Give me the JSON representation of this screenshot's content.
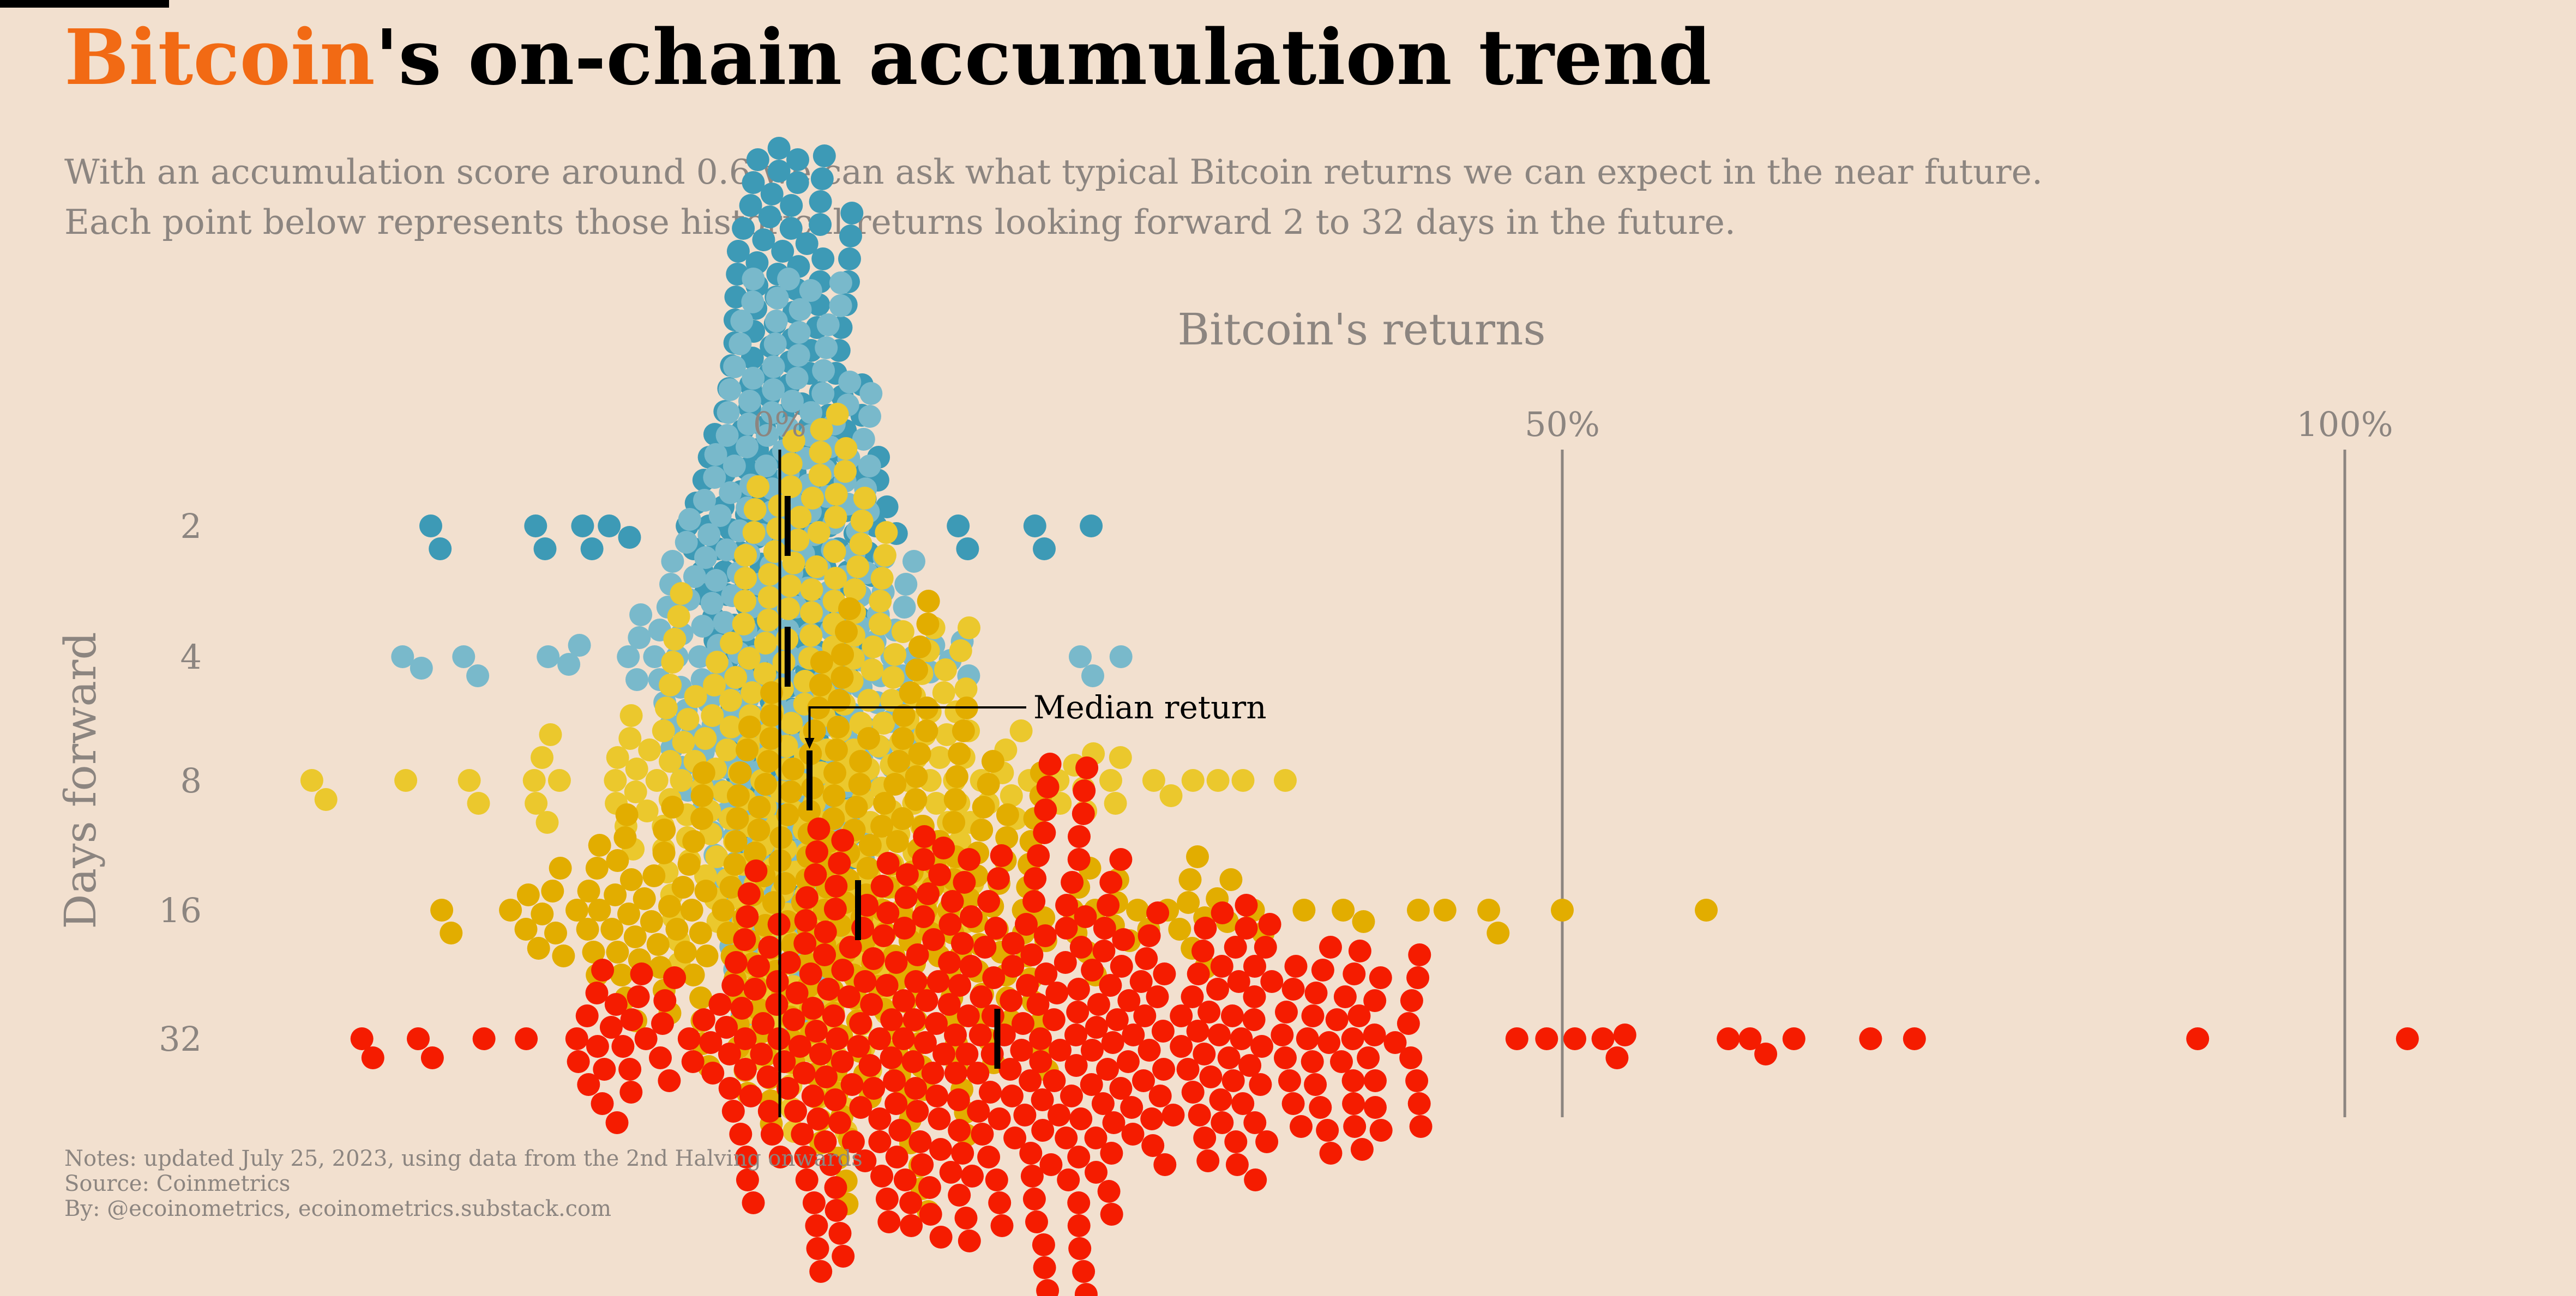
{
  "header": {
    "title_brand": "Bitcoin",
    "title_rest": "'s on-chain accumulation trend",
    "subtitle_line1": "With an accumulation score around 0.6 we can ask what typical Bitcoin returns we can expect in the near future.",
    "subtitle_line2": "Each point below represents those historical returns looking forward 2 to 32 days in the future."
  },
  "notes": {
    "line1": "Notes: updated July 25, 2023, using data from the 2nd Halving onwards",
    "line2": "Source: Coinmetrics",
    "line3": "By: @ecoinometrics, ecoinometrics.substack.com"
  },
  "colors": {
    "background": "#f2e0cf",
    "brand": "#f26a14",
    "muted_text": "#8c8580",
    "gridline": "#8c8580"
  },
  "chart_data": {
    "type": "scatter",
    "subtype": "beeswarm",
    "title": "Bitcoin's returns",
    "xlabel": "Bitcoin's returns",
    "ylabel": "Days forward",
    "xlim": [
      -30,
      105
    ],
    "x_ticks": [
      0,
      50,
      100
    ],
    "x_tick_labels": [
      "0%",
      "50%",
      "100%"
    ],
    "x_axis_position": "top",
    "grid": "vertical at 50% and 100%",
    "zero_line": true,
    "annotation": {
      "text": "Median return",
      "target_series": "8"
    },
    "series": [
      {
        "name": "2",
        "color": "#3d9ab6",
        "median": 0.5,
        "count": 320,
        "min": -22.3,
        "max": 19.9,
        "core": {
          "lo": -6,
          "hi": 8,
          "sd": 2.2
        },
        "outliers": [
          -22.3,
          -21.7,
          -15.6,
          -15.0,
          -12.6,
          -12.0,
          -10.9,
          -9.6,
          11.4,
          12.0,
          16.3,
          16.9,
          19.9
        ]
      },
      {
        "name": "4",
        "color": "#79b9cb",
        "median": 0.5,
        "count": 330,
        "min": -24.1,
        "max": 21.8,
        "core": {
          "lo": -14,
          "hi": 17,
          "sd": 3.4
        },
        "outliers": [
          -24.1,
          -22.9,
          -20.2,
          -19.3,
          -14.8,
          19.2,
          20.0,
          21.8
        ]
      },
      {
        "name": "8",
        "color": "#ebc82d",
        "median": 1.9,
        "count": 330,
        "min": -29.9,
        "max": 32.3,
        "core": {
          "lo": -20,
          "hi": 22,
          "sd": 5.2
        },
        "outliers": [
          -29.9,
          -29.0,
          -23.9,
          23.9,
          25.0,
          26.4,
          28.0,
          29.6,
          32.3
        ]
      },
      {
        "name": "16",
        "color": "#e2ad00",
        "median": 5.0,
        "count": 330,
        "min": -21.6,
        "max": 59.2,
        "core": {
          "lo": -18,
          "hi": 32,
          "sd": 9.0
        },
        "outliers": [
          -21.6,
          -21.0,
          33.5,
          36.0,
          37.3,
          40.8,
          42.5,
          45.3,
          45.9,
          50.0,
          59.2
        ]
      },
      {
        "name": "32",
        "color": "#f51c00",
        "median": 13.9,
        "count": 440,
        "min": -26.7,
        "max": 104.0,
        "core": {
          "lo": -14,
          "hi": 42,
          "sd": 14.0
        },
        "outliers": [
          -26.7,
          -26.0,
          -23.1,
          -22.2,
          -18.9,
          -16.2,
          47.1,
          49.0,
          50.8,
          52.6,
          53.5,
          54.0,
          60.6,
          62.0,
          63.0,
          64.8,
          69.7,
          72.5,
          90.6,
          104.0
        ]
      }
    ]
  }
}
